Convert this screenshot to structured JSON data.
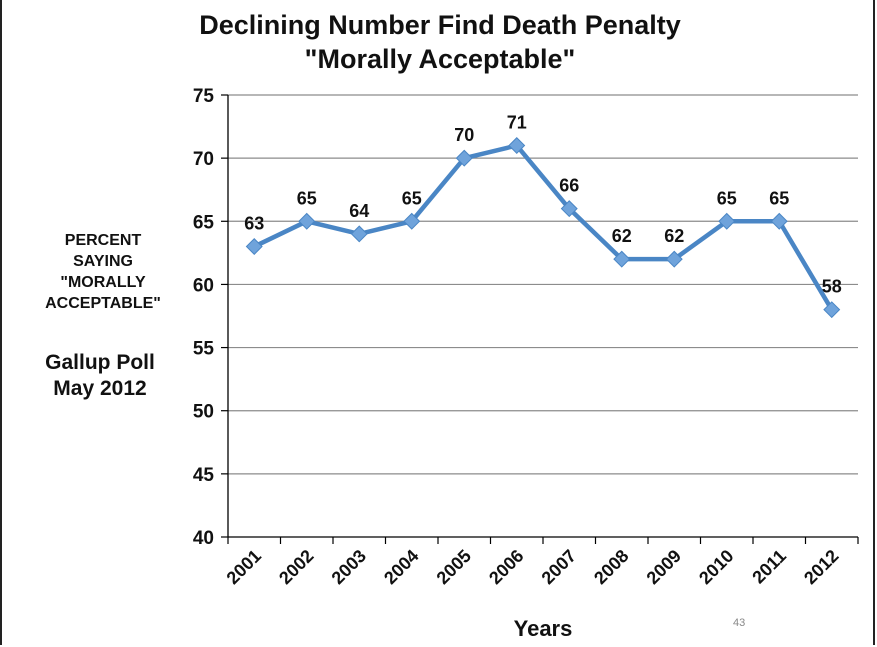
{
  "slide": {
    "title_line1": "Declining Number Find Death Penalty",
    "title_line2": "\"Morally Acceptable\"",
    "ylabel_lines": [
      "PERCENT",
      "SAYING",
      "\"MORALLY",
      "ACCEPTABLE\""
    ],
    "source_line1": "Gallup Poll",
    "source_line2": "May 2012",
    "page_number": "43"
  },
  "chart_data": {
    "type": "line",
    "title": "Declining Number Find Death Penalty \"Morally Acceptable\"",
    "xlabel": "Years",
    "ylabel": "PERCENT SAYING \"MORALLY ACCEPTABLE\"",
    "categories": [
      "2001",
      "2002",
      "2003",
      "2004",
      "2005",
      "2006",
      "2007",
      "2008",
      "2009",
      "2010",
      "2011",
      "2012"
    ],
    "values": [
      63,
      65,
      64,
      65,
      70,
      71,
      66,
      62,
      62,
      65,
      65,
      58
    ],
    "ylim": [
      40,
      75
    ],
    "yticks": [
      40,
      45,
      50,
      55,
      60,
      65,
      70,
      75
    ],
    "grid": true,
    "legend": "none",
    "colors": {
      "line": "#4a86c5",
      "marker": "#6fa3db",
      "grid": "#8c8c8c",
      "axis": "#000000"
    }
  }
}
